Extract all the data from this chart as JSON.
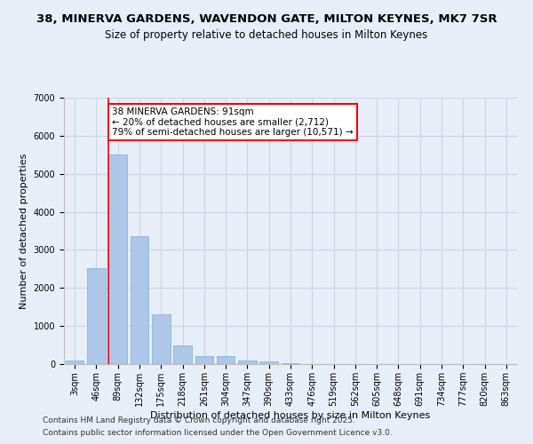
{
  "title1": "38, MINERVA GARDENS, WAVENDON GATE, MILTON KEYNES, MK7 7SR",
  "title2": "Size of property relative to detached houses in Milton Keynes",
  "xlabel": "Distribution of detached houses by size in Milton Keynes",
  "ylabel": "Number of detached properties",
  "categories": [
    "3sqm",
    "46sqm",
    "89sqm",
    "132sqm",
    "175sqm",
    "218sqm",
    "261sqm",
    "304sqm",
    "347sqm",
    "390sqm",
    "433sqm",
    "476sqm",
    "519sqm",
    "562sqm",
    "605sqm",
    "648sqm",
    "691sqm",
    "734sqm",
    "777sqm",
    "820sqm",
    "863sqm"
  ],
  "values": [
    100,
    2520,
    5500,
    3350,
    1300,
    480,
    220,
    220,
    100,
    60,
    35,
    0,
    0,
    0,
    0,
    0,
    0,
    0,
    0,
    0,
    0
  ],
  "bar_color": "#aec6e8",
  "bar_edgecolor": "#7aadd4",
  "annotation_text": "38 MINERVA GARDENS: 91sqm\n← 20% of detached houses are smaller (2,712)\n79% of semi-detached houses are larger (10,571) →",
  "annotation_box_color": "white",
  "annotation_box_edgecolor": "red",
  "vline_color": "red",
  "vline_x_index": 2,
  "ylim": [
    0,
    7000
  ],
  "yticks": [
    0,
    1000,
    2000,
    3000,
    4000,
    5000,
    6000,
    7000
  ],
  "grid_color": "#ccd5e5",
  "background_color": "#e8eef8",
  "footer1": "Contains HM Land Registry data © Crown copyright and database right 2025.",
  "footer2": "Contains public sector information licensed under the Open Government Licence v3.0.",
  "title1_fontsize": 9.5,
  "title2_fontsize": 8.5,
  "axis_label_fontsize": 8,
  "tick_fontsize": 7,
  "footer_fontsize": 6.5,
  "annotation_fontsize": 7.5
}
